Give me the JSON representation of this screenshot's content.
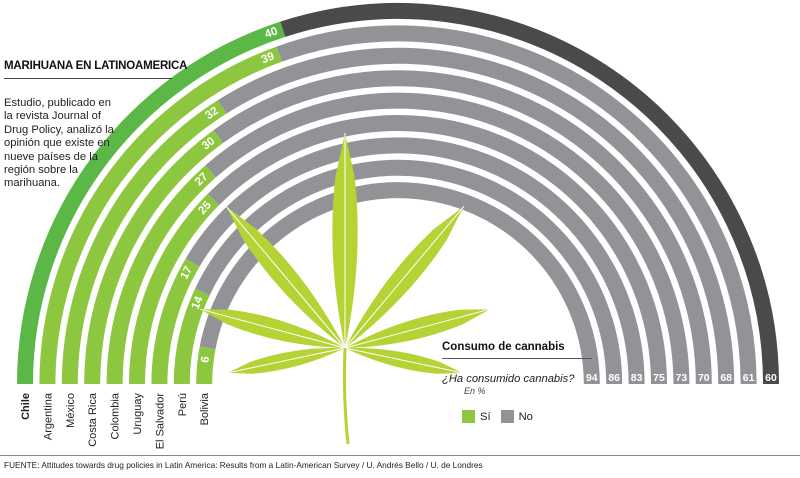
{
  "title": "MARIHUANA EN LATINOAMERICA",
  "description": "Estudio, publicado en la revista Journal of Drug Policy, analizó la opinión que existe en nueve países de la región sobre la marihuana.",
  "legend": {
    "title": "Consumo de cannabis",
    "question": "¿Ha consumido cannabis?",
    "unit": "En %",
    "yes_label": "Sí",
    "no_label": "No"
  },
  "source": "FUENTE: Attitudes towards drug policies in Latin America: Results from a Latin-American Survey  / U. Andrés Bello / U. de Londres",
  "colors": {
    "yes": "#8dc63f",
    "yes_highlight": "#5bb846",
    "no": "#919396",
    "no_highlight": "#4a4a4d"
  },
  "chart_data": {
    "type": "semicircle-stacked",
    "categories": [
      "Chile",
      "Argentina",
      "México",
      "Costa Rica",
      "Colombia",
      "Uruguay",
      "El Salvador",
      "Perú",
      "Bolivia"
    ],
    "series": [
      {
        "name": "Sí",
        "values": [
          40,
          39,
          32,
          30,
          27,
          25,
          17,
          14,
          6
        ]
      },
      {
        "name": "No",
        "values": [
          60,
          61,
          68,
          70,
          73,
          75,
          83,
          86,
          94
        ]
      }
    ],
    "highlight": "Chile"
  }
}
